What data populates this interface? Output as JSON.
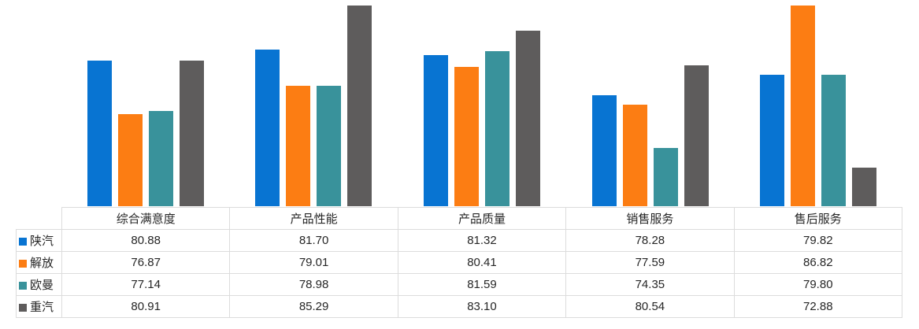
{
  "chart_data": {
    "type": "bar",
    "title": "",
    "xlabel": "",
    "ylabel": "",
    "grid": false,
    "legend_position": "data-table-left",
    "show_data_table": true,
    "ylim": [
      70,
      85
    ],
    "clip_to_ylim": true,
    "value_format": "0.00",
    "corner_label": "",
    "categories": [
      "综合满意度",
      "产品性能",
      "产品质量",
      "销售服务",
      "售后服务"
    ],
    "series": [
      {
        "name": "陕汽",
        "color": "#0874D2",
        "values": [
          80.88,
          81.7,
          81.32,
          78.28,
          79.82
        ]
      },
      {
        "name": "解放",
        "color": "#FC7D13",
        "values": [
          76.87,
          79.01,
          80.41,
          77.59,
          86.82
        ]
      },
      {
        "name": "欧曼",
        "color": "#39929B",
        "values": [
          77.14,
          78.98,
          81.59,
          74.35,
          79.8
        ]
      },
      {
        "name": "重汽",
        "color": "#5E5C5C",
        "values": [
          80.91,
          85.29,
          83.1,
          80.54,
          72.88
        ]
      }
    ]
  }
}
